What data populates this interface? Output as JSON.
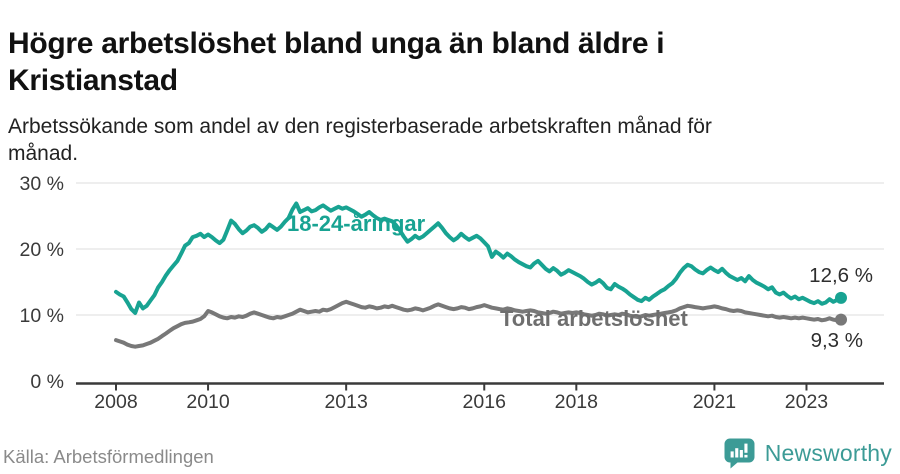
{
  "header": {
    "title_line1": "Högre arbetslöshet bland unga än bland äldre i",
    "title_line2": "Kristianstad",
    "subtitle_line1": "Arbetssökande som andel av den registerbaserade arbetskraften månad för",
    "subtitle_line2": "månad."
  },
  "chart_data": {
    "type": "line",
    "title": "Högre arbetslöshet bland unga än bland äldre i Kristianstad",
    "subtitle": "Arbetssökande som andel av den registerbaserade arbetskraften månad för månad.",
    "unit": "%",
    "frequency": "monthly",
    "x_start": "2008-01",
    "x_end": "2023-10",
    "ylim": [
      0,
      30
    ],
    "grid": true,
    "legend": "inline-labels",
    "y_ticks": [
      {
        "value": 0,
        "label": "0 %"
      },
      {
        "value": 10,
        "label": "10 %"
      },
      {
        "value": 20,
        "label": "20 %"
      },
      {
        "value": 30,
        "label": "30 %"
      }
    ],
    "x_ticks": [
      {
        "label": "2008",
        "month_index": 0
      },
      {
        "label": "2010",
        "month_index": 24
      },
      {
        "label": "2013",
        "month_index": 60
      },
      {
        "label": "2016",
        "month_index": 96
      },
      {
        "label": "2018",
        "month_index": 120
      },
      {
        "label": "2021",
        "month_index": 156
      },
      {
        "label": "2023",
        "month_index": 180
      }
    ],
    "series": [
      {
        "name": "18-24-åringar",
        "color": "#18a392",
        "label_color": "#18a392",
        "end_label": "12,6 %",
        "end_value": 12.6,
        "values": [
          13.5,
          13.1,
          12.8,
          11.9,
          10.9,
          10.3,
          11.9,
          11.0,
          11.4,
          12.2,
          13.0,
          14.2,
          15.0,
          16.0,
          16.8,
          17.5,
          18.2,
          19.3,
          20.5,
          20.9,
          21.8,
          22.0,
          22.3,
          21.8,
          22.2,
          21.8,
          21.3,
          20.9,
          21.4,
          22.8,
          24.3,
          23.8,
          23.0,
          22.4,
          22.8,
          23.4,
          23.6,
          23.2,
          22.6,
          23.0,
          23.7,
          23.3,
          22.9,
          23.4,
          24.1,
          24.7,
          26.0,
          26.9,
          25.6,
          25.9,
          26.2,
          25.7,
          25.9,
          26.3,
          26.6,
          26.2,
          25.8,
          26.1,
          26.4,
          26.1,
          26.3,
          26.0,
          25.7,
          25.3,
          24.9,
          25.2,
          25.6,
          25.1,
          24.7,
          24.4,
          24.6,
          24.4,
          24.2,
          23.6,
          22.8,
          21.9,
          21.1,
          21.5,
          22.0,
          21.6,
          21.9,
          22.4,
          22.9,
          23.4,
          23.9,
          23.2,
          22.4,
          21.8,
          21.3,
          21.7,
          22.3,
          21.8,
          21.4,
          21.7,
          22.0,
          21.6,
          21.0,
          20.4,
          18.8,
          19.6,
          19.2,
          18.7,
          19.3,
          18.9,
          18.4,
          18.0,
          17.7,
          17.4,
          17.2,
          17.8,
          18.2,
          17.6,
          17.0,
          16.6,
          17.1,
          16.7,
          16.1,
          16.4,
          16.8,
          16.5,
          16.2,
          15.9,
          15.5,
          15.0,
          14.6,
          14.9,
          15.3,
          14.8,
          14.1,
          13.9,
          14.7,
          14.3,
          14.0,
          13.6,
          13.1,
          12.7,
          12.3,
          12.1,
          12.6,
          12.3,
          12.8,
          13.2,
          13.6,
          13.9,
          14.4,
          14.8,
          15.5,
          16.4,
          17.1,
          17.6,
          17.4,
          16.9,
          16.5,
          16.3,
          16.8,
          17.2,
          16.8,
          16.5,
          17.0,
          16.4,
          15.9,
          15.6,
          15.3,
          15.6,
          15.1,
          15.9,
          15.3,
          14.9,
          14.6,
          14.3,
          13.9,
          14.2,
          13.4,
          13.1,
          13.4,
          12.9,
          12.5,
          12.8,
          12.4,
          12.6,
          12.3,
          12.0,
          11.8,
          12.1,
          11.7,
          11.9,
          12.4,
          12.0,
          12.3,
          12.6
        ]
      },
      {
        "name": "Total arbetslöshet",
        "color": "#787878",
        "label_color": "#6e6e6e",
        "end_label": "9,3 %",
        "end_value": 9.3,
        "values": [
          6.2,
          6.0,
          5.8,
          5.5,
          5.3,
          5.2,
          5.3,
          5.4,
          5.6,
          5.8,
          6.1,
          6.4,
          6.8,
          7.2,
          7.6,
          8.0,
          8.3,
          8.6,
          8.8,
          8.9,
          9.0,
          9.2,
          9.4,
          9.8,
          10.6,
          10.4,
          10.1,
          9.8,
          9.6,
          9.5,
          9.7,
          9.6,
          9.8,
          9.7,
          9.9,
          10.2,
          10.4,
          10.2,
          10.0,
          9.8,
          9.6,
          9.5,
          9.7,
          9.6,
          9.8,
          10.0,
          10.2,
          10.5,
          10.8,
          10.6,
          10.4,
          10.5,
          10.6,
          10.5,
          10.8,
          10.7,
          10.9,
          11.2,
          11.5,
          11.8,
          12.0,
          11.8,
          11.6,
          11.4,
          11.2,
          11.1,
          11.3,
          11.2,
          11.0,
          11.1,
          11.3,
          11.2,
          11.4,
          11.2,
          11.0,
          10.8,
          10.7,
          10.8,
          11.0,
          10.9,
          10.7,
          10.9,
          11.1,
          11.4,
          11.6,
          11.4,
          11.2,
          11.0,
          10.9,
          11.0,
          11.2,
          11.1,
          10.9,
          11.0,
          11.2,
          11.3,
          11.5,
          11.3,
          11.1,
          11.0,
          10.9,
          10.8,
          11.0,
          10.9,
          10.7,
          10.6,
          10.5,
          10.6,
          10.7,
          10.6,
          10.4,
          10.3,
          10.2,
          10.3,
          10.5,
          10.4,
          10.2,
          10.3,
          10.4,
          10.3,
          10.4,
          10.3,
          10.1,
          10.0,
          9.9,
          10.0,
          10.2,
          10.1,
          9.9,
          10.0,
          10.1,
          10.0,
          10.2,
          10.1,
          9.9,
          9.8,
          9.7,
          9.8,
          10.0,
          9.9,
          10.0,
          10.1,
          10.2,
          10.3,
          10.4,
          10.5,
          10.7,
          11.0,
          11.2,
          11.4,
          11.3,
          11.2,
          11.1,
          11.0,
          11.1,
          11.2,
          11.3,
          11.2,
          11.0,
          10.9,
          10.7,
          10.6,
          10.7,
          10.6,
          10.4,
          10.3,
          10.2,
          10.1,
          10.0,
          9.9,
          9.8,
          9.9,
          9.7,
          9.6,
          9.7,
          9.6,
          9.5,
          9.6,
          9.5,
          9.6,
          9.5,
          9.4,
          9.3,
          9.4,
          9.2,
          9.3,
          9.5,
          9.3,
          9.2,
          9.3
        ]
      }
    ],
    "style": {
      "grid_color": "#e3e3e3",
      "axis_color": "#3a3a3a",
      "tick_label_color": "#3a3a3a"
    }
  },
  "footer": {
    "source": "Källa: Arbetsförmedlingen",
    "brand": "Newsworthy",
    "brand_color": "#3c9b96"
  }
}
